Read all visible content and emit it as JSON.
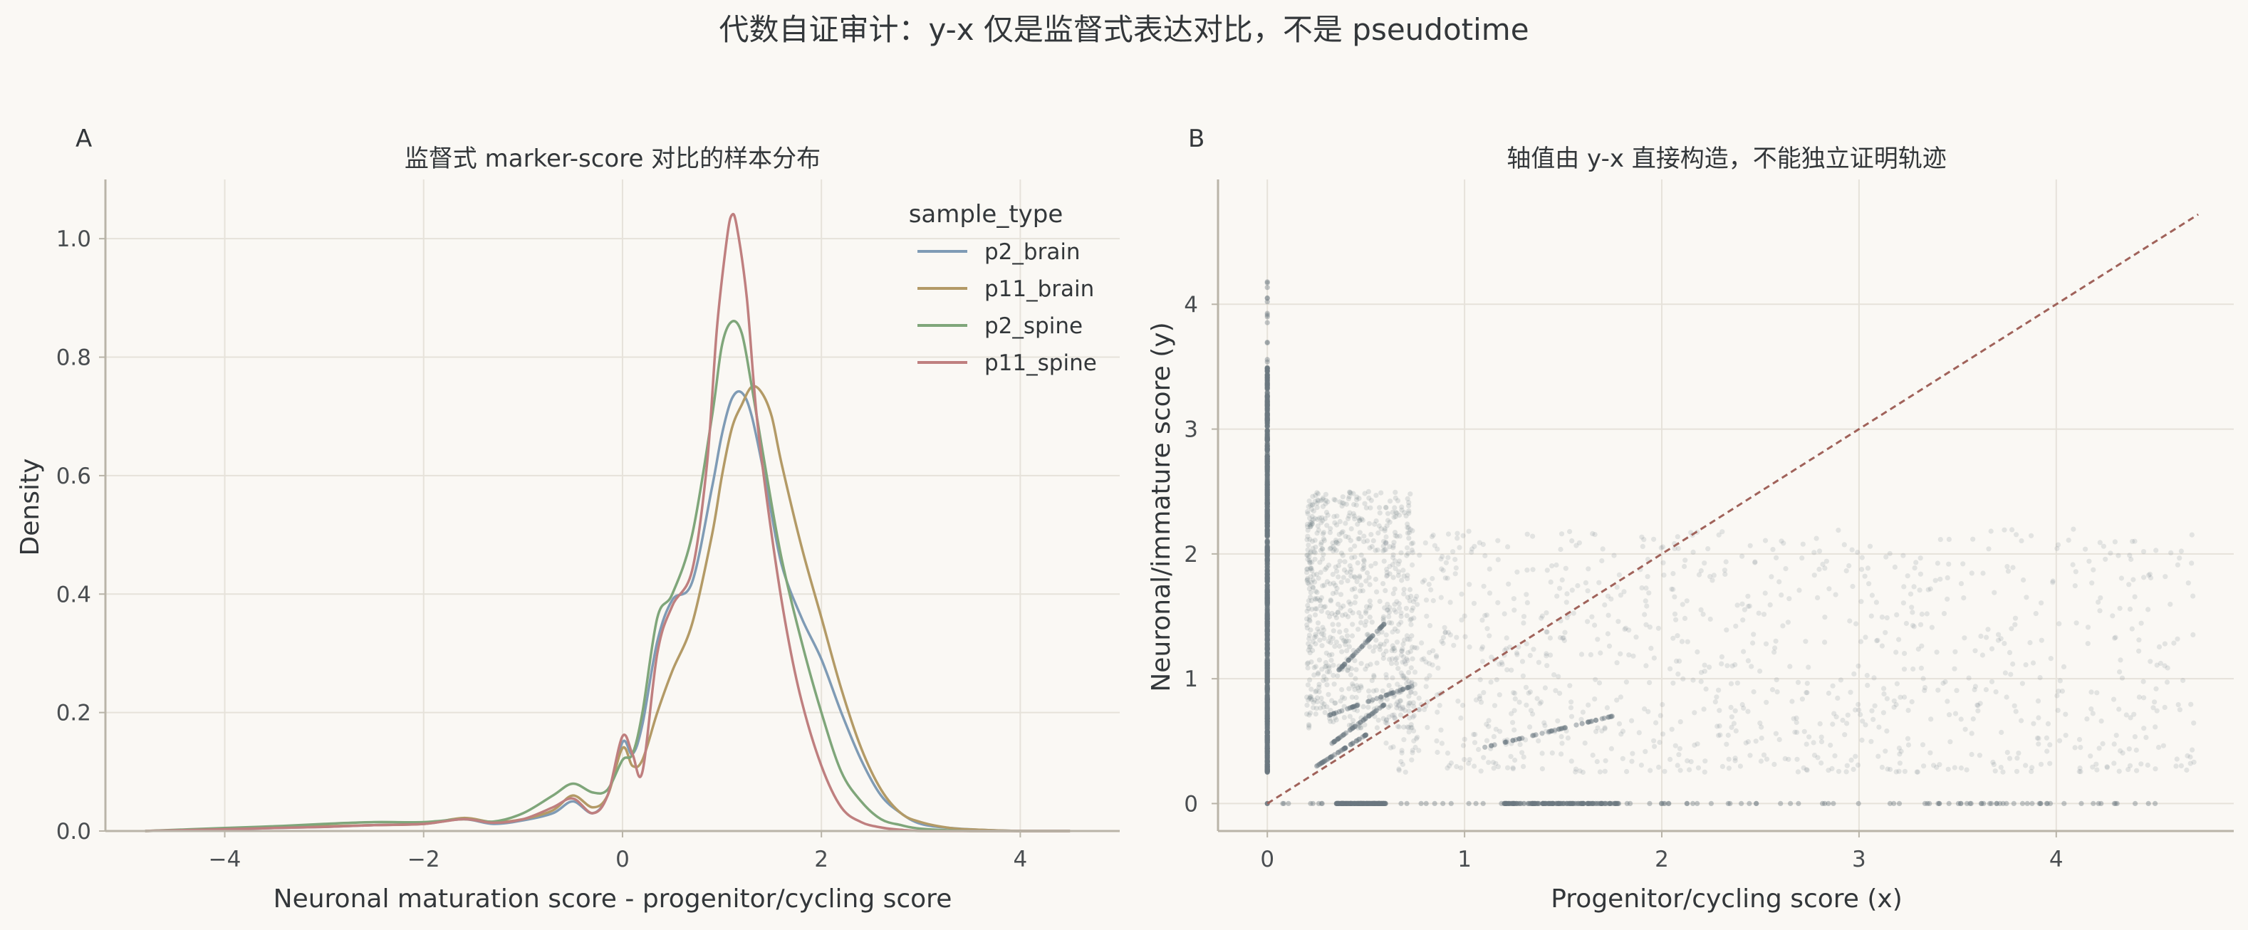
{
  "suptitle": "代数自证审计：y-x 仅是监督式表达对比，不是 pseudotime",
  "chart_data": [
    {
      "panel": "A",
      "type": "line",
      "title": "监督式 marker-score 对比的样本分布",
      "xlabel": "Neuronal maturation score - progenitor/cycling score",
      "ylabel": "Density",
      "xlim": [
        -5.2,
        5.0
      ],
      "ylim": [
        0,
        1.1
      ],
      "xticks": [
        -4,
        -2,
        0,
        2,
        4
      ],
      "xtick_labels": [
        "−4",
        "−2",
        "0",
        "2",
        "4"
      ],
      "yticks": [
        0.0,
        0.2,
        0.4,
        0.6,
        0.8,
        1.0
      ],
      "ytick_labels": [
        "0.0",
        "0.2",
        "0.4",
        "0.6",
        "0.8",
        "1.0"
      ],
      "grid": true,
      "legend": {
        "title": "sample_type",
        "position": "top-right"
      },
      "series": [
        {
          "name": "p2_brain",
          "color": "#7f9bb5",
          "x": [
            -4.8,
            -4.0,
            -3.5,
            -3.0,
            -2.5,
            -2.0,
            -1.6,
            -1.3,
            -1.0,
            -0.7,
            -0.5,
            -0.3,
            -0.15,
            0.0,
            0.1,
            0.2,
            0.35,
            0.5,
            0.7,
            0.9,
            1.0,
            1.1,
            1.2,
            1.3,
            1.45,
            1.6,
            1.8,
            2.0,
            2.2,
            2.4,
            2.6,
            2.8,
            3.0,
            3.3,
            3.6,
            4.0,
            4.5
          ],
          "y": [
            0.0,
            0.003,
            0.005,
            0.007,
            0.01,
            0.012,
            0.02,
            0.012,
            0.018,
            0.03,
            0.05,
            0.03,
            0.06,
            0.15,
            0.13,
            0.18,
            0.32,
            0.39,
            0.42,
            0.58,
            0.67,
            0.73,
            0.74,
            0.7,
            0.58,
            0.45,
            0.36,
            0.29,
            0.2,
            0.12,
            0.06,
            0.03,
            0.012,
            0.005,
            0.002,
            0.0,
            0.0
          ]
        },
        {
          "name": "p11_brain",
          "color": "#b39a66",
          "x": [
            -4.8,
            -4.0,
            -3.5,
            -3.0,
            -2.5,
            -2.0,
            -1.6,
            -1.3,
            -1.0,
            -0.7,
            -0.5,
            -0.3,
            -0.15,
            0.0,
            0.1,
            0.2,
            0.35,
            0.5,
            0.7,
            0.9,
            1.0,
            1.1,
            1.2,
            1.3,
            1.4,
            1.5,
            1.6,
            1.8,
            2.0,
            2.2,
            2.4,
            2.6,
            2.8,
            3.0,
            3.3,
            3.6,
            4.0,
            4.5
          ],
          "y": [
            0.0,
            0.004,
            0.006,
            0.008,
            0.01,
            0.012,
            0.022,
            0.015,
            0.02,
            0.035,
            0.06,
            0.04,
            0.06,
            0.14,
            0.11,
            0.12,
            0.2,
            0.27,
            0.35,
            0.5,
            0.6,
            0.68,
            0.72,
            0.75,
            0.74,
            0.7,
            0.62,
            0.48,
            0.36,
            0.24,
            0.14,
            0.07,
            0.03,
            0.015,
            0.005,
            0.002,
            0.0,
            0.0
          ]
        },
        {
          "name": "p2_spine",
          "color": "#7fa67a",
          "x": [
            -4.8,
            -4.0,
            -3.5,
            -3.0,
            -2.5,
            -2.0,
            -1.6,
            -1.3,
            -1.0,
            -0.7,
            -0.5,
            -0.3,
            -0.15,
            0.0,
            0.1,
            0.2,
            0.35,
            0.5,
            0.7,
            0.9,
            1.0,
            1.1,
            1.2,
            1.3,
            1.45,
            1.6,
            1.8,
            2.0,
            2.2,
            2.4,
            2.6,
            2.8,
            3.0,
            3.5,
            4.0,
            4.5
          ],
          "y": [
            0.0,
            0.005,
            0.008,
            0.012,
            0.015,
            0.015,
            0.02,
            0.016,
            0.03,
            0.06,
            0.08,
            0.065,
            0.07,
            0.12,
            0.13,
            0.2,
            0.36,
            0.4,
            0.5,
            0.7,
            0.82,
            0.86,
            0.84,
            0.75,
            0.6,
            0.46,
            0.32,
            0.2,
            0.1,
            0.05,
            0.02,
            0.01,
            0.004,
            0.0,
            0.0,
            0.0
          ]
        },
        {
          "name": "p11_spine",
          "color": "#bf7f7f",
          "x": [
            -4.8,
            -4.0,
            -3.5,
            -3.0,
            -2.5,
            -2.0,
            -1.6,
            -1.3,
            -1.0,
            -0.7,
            -0.5,
            -0.3,
            -0.15,
            0.0,
            0.1,
            0.2,
            0.35,
            0.5,
            0.7,
            0.85,
            0.95,
            1.05,
            1.1,
            1.15,
            1.25,
            1.35,
            1.5,
            1.65,
            1.8,
            2.0,
            2.2,
            2.4,
            2.6,
            2.8,
            3.0,
            3.5,
            4.0,
            4.5
          ],
          "y": [
            0.0,
            0.003,
            0.005,
            0.007,
            0.01,
            0.012,
            0.02,
            0.014,
            0.02,
            0.04,
            0.055,
            0.03,
            0.06,
            0.16,
            0.13,
            0.1,
            0.3,
            0.38,
            0.44,
            0.62,
            0.85,
            1.0,
            1.04,
            1.02,
            0.9,
            0.7,
            0.5,
            0.34,
            0.22,
            0.11,
            0.04,
            0.015,
            0.006,
            0.002,
            0.0,
            0.0,
            0.0,
            0.0
          ]
        }
      ]
    },
    {
      "panel": "B",
      "type": "scatter",
      "title": "轴值由 y-x 直接构造，不能独立证明轨迹",
      "xlabel": "Progenitor/cycling score (x)",
      "ylabel": "Neuronal/immature score (y)",
      "xlim": [
        -0.25,
        4.9
      ],
      "ylim": [
        -0.22,
        5.0
      ],
      "xticks": [
        0,
        1,
        2,
        3,
        4
      ],
      "xtick_labels": [
        "0",
        "1",
        "2",
        "3",
        "4"
      ],
      "yticks": [
        0,
        1,
        2,
        3,
        4
      ],
      "ytick_labels": [
        "0",
        "1",
        "2",
        "3",
        "4"
      ],
      "grid": true,
      "point_color": "#6b7880",
      "reference_line": {
        "label": "y = x",
        "from": [
          0,
          0
        ],
        "to": [
          4.72,
          4.72
        ],
        "color": "#a0625a",
        "style": "dashed"
      },
      "point_groups": [
        {
          "name": "x = 0 column",
          "x": 0,
          "y_range": [
            0.25,
            3.5
          ],
          "y_max": 4.2,
          "points": 900
        },
        {
          "name": "y = 0 row",
          "y": 0,
          "x_range": [
            0.05,
            4.55
          ],
          "points": 500
        },
        {
          "name": "upper-left cloud",
          "x_range": [
            0.2,
            0.75
          ],
          "y_range": [
            0.6,
            2.5
          ],
          "points": 700
        },
        {
          "name": "diffuse cloud",
          "x_range": [
            0.6,
            4.7
          ],
          "y_range": [
            0.25,
            2.2
          ],
          "points": 1100
        }
      ]
    }
  ]
}
